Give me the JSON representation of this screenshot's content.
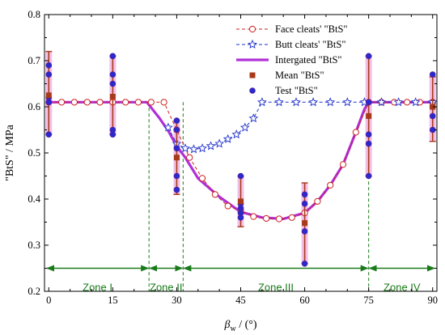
{
  "chart_data": {
    "type": "line",
    "xlabel_main": "β",
    "xlabel_sub": "w",
    "xlabel_unit": " / (°)",
    "ylabel": "\"BtS\" / MPa",
    "xlim": [
      -1,
      91
    ],
    "ylim": [
      0.2,
      0.8
    ],
    "x_ticks": [
      0,
      15,
      30,
      45,
      60,
      75,
      90
    ],
    "y_ticks": [
      0.2,
      0.3,
      0.4,
      0.5,
      0.6,
      0.7,
      0.8
    ],
    "legend_position": "top-right",
    "colors": {
      "face": "#cc2222",
      "butt": "#2233cc",
      "integrated": "#b030d8",
      "mean": "#a83a1a",
      "test": "#2a2acc",
      "zone": "#1a7a1a",
      "errorbar": "#a83a1a",
      "errorband": "#f2c0e6"
    },
    "series": [
      {
        "name": "Face cleats' \"BtS\"",
        "style": "dashed-circle",
        "x": [
          0,
          3,
          6,
          9,
          12,
          15,
          18,
          21,
          24,
          27,
          30,
          33,
          36,
          39,
          42,
          45,
          48,
          51,
          54,
          57,
          60,
          63,
          66,
          69,
          72,
          75,
          78,
          81,
          84,
          87,
          90
        ],
        "y": [
          0.61,
          0.61,
          0.61,
          0.61,
          0.61,
          0.61,
          0.61,
          0.61,
          0.61,
          0.61,
          0.55,
          0.49,
          0.445,
          0.41,
          0.385,
          0.375,
          0.362,
          0.358,
          0.357,
          0.36,
          0.37,
          0.395,
          0.43,
          0.475,
          0.545,
          0.61,
          0.61,
          0.61,
          0.61,
          0.61,
          0.61
        ]
      },
      {
        "name": "Butt cleats' \"BtS\"",
        "style": "dashed-star",
        "x": [
          28,
          30,
          32,
          34,
          36,
          38,
          40,
          42,
          44,
          46,
          48,
          50,
          54,
          58,
          62,
          66,
          70,
          74,
          78,
          82,
          86,
          90
        ],
        "y": [
          0.555,
          0.52,
          0.51,
          0.508,
          0.51,
          0.515,
          0.52,
          0.53,
          0.54,
          0.555,
          0.575,
          0.61,
          0.61,
          0.61,
          0.61,
          0.61,
          0.61,
          0.61,
          0.61,
          0.61,
          0.61,
          0.61
        ]
      },
      {
        "name": "Intergated \"BtS\"",
        "style": "thick-solid",
        "x": [
          0,
          23,
          26,
          28,
          30,
          32,
          35,
          40,
          45,
          50,
          55,
          60,
          63,
          66,
          69,
          72,
          74,
          75,
          90
        ],
        "y": [
          0.61,
          0.61,
          0.575,
          0.548,
          0.515,
          0.49,
          0.445,
          0.405,
          0.372,
          0.36,
          0.357,
          0.37,
          0.395,
          0.43,
          0.475,
          0.545,
          0.595,
          0.61,
          0.61
        ]
      }
    ],
    "mean": {
      "name": "Mean \"BtS\"",
      "points": [
        {
          "x": 0,
          "y": 0.625,
          "lo": 0.54,
          "hi": 0.72
        },
        {
          "x": 15,
          "y": 0.622,
          "lo": 0.54,
          "hi": 0.71
        },
        {
          "x": 30,
          "y": 0.49,
          "lo": 0.41,
          "hi": 0.57
        },
        {
          "x": 45,
          "y": 0.395,
          "lo": 0.34,
          "hi": 0.45
        },
        {
          "x": 60,
          "y": 0.348,
          "lo": 0.26,
          "hi": 0.435
        },
        {
          "x": 75,
          "y": 0.58,
          "lo": 0.45,
          "hi": 0.71
        },
        {
          "x": 90,
          "y": 0.6,
          "lo": 0.525,
          "hi": 0.665
        }
      ]
    },
    "test": {
      "name": "Test \"BtS\"",
      "points": [
        {
          "x": 0,
          "y": 0.69
        },
        {
          "x": 0,
          "y": 0.67
        },
        {
          "x": 0,
          "y": 0.62
        },
        {
          "x": 0,
          "y": 0.61
        },
        {
          "x": 0,
          "y": 0.54
        },
        {
          "x": 15,
          "y": 0.71
        },
        {
          "x": 15,
          "y": 0.67
        },
        {
          "x": 15,
          "y": 0.65
        },
        {
          "x": 15,
          "y": 0.55
        },
        {
          "x": 15,
          "y": 0.54
        },
        {
          "x": 30,
          "y": 0.57
        },
        {
          "x": 30,
          "y": 0.55
        },
        {
          "x": 30,
          "y": 0.51
        },
        {
          "x": 30,
          "y": 0.45
        },
        {
          "x": 30,
          "y": 0.42
        },
        {
          "x": 45,
          "y": 0.45
        },
        {
          "x": 45,
          "y": 0.39
        },
        {
          "x": 45,
          "y": 0.38
        },
        {
          "x": 45,
          "y": 0.37
        },
        {
          "x": 45,
          "y": 0.36
        },
        {
          "x": 60,
          "y": 0.41
        },
        {
          "x": 60,
          "y": 0.39
        },
        {
          "x": 60,
          "y": 0.33
        },
        {
          "x": 60,
          "y": 0.26
        },
        {
          "x": 75,
          "y": 0.71
        },
        {
          "x": 75,
          "y": 0.61
        },
        {
          "x": 75,
          "y": 0.54
        },
        {
          "x": 75,
          "y": 0.52
        },
        {
          "x": 75,
          "y": 0.45
        },
        {
          "x": 90,
          "y": 0.67
        },
        {
          "x": 90,
          "y": 0.6
        },
        {
          "x": 90,
          "y": 0.58
        },
        {
          "x": 90,
          "y": 0.55
        }
      ]
    },
    "zone_boundaries": [
      23.5,
      31.5,
      75
    ],
    "zone_arrow_y": 0.25,
    "zones": [
      {
        "label": "Zone I",
        "x_from": 0,
        "x_to": 23.5
      },
      {
        "label": "Zone II",
        "x_from": 23.5,
        "x_to": 31.5
      },
      {
        "label": "Zone III",
        "x_from": 31.5,
        "x_to": 75
      },
      {
        "label": "Zone IV",
        "x_from": 75,
        "x_to": 90
      }
    ]
  }
}
